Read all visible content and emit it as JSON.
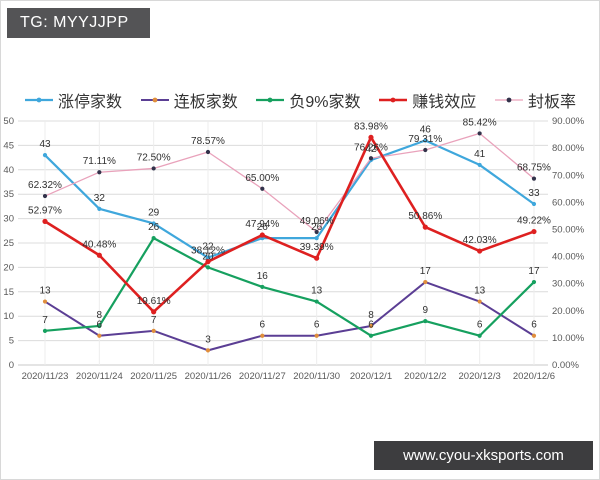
{
  "header": {
    "tg_label": "TG: MYYJJPP"
  },
  "footer": {
    "website": "www.cyou-xksports.com"
  },
  "colors": {
    "badge_top_bg": "#545456",
    "badge_bottom_bg": "#3d3d3f",
    "gridline": "#dcdcdc",
    "axis_text": "#595959",
    "data_label_text": "#303030"
  },
  "chart_data": {
    "type": "line",
    "title": "",
    "legend_position": "top",
    "grid": true,
    "categories": [
      "2020/11/23",
      "2020/11/24",
      "2020/11/25",
      "2020/11/26",
      "2020/11/27",
      "2020/11/30",
      "2020/12/1",
      "2020/12/2",
      "2020/12/3",
      "2020/12/6"
    ],
    "series": [
      {
        "name": "涨停家数",
        "axis": "left",
        "color": "#3fa7dc",
        "marker": "#3fa7dc",
        "line_width": 2.2,
        "values": [
          43,
          32,
          29,
          22,
          26,
          26,
          42,
          46,
          41,
          33
        ],
        "labels": [
          "43",
          "32",
          "29",
          "22",
          "26",
          "26",
          "42",
          "46",
          "41",
          "33"
        ]
      },
      {
        "name": "连板家数",
        "axis": "left",
        "color": "#5b3e94",
        "marker": "#e08e3c",
        "line_width": 2,
        "values": [
          13,
          6,
          7,
          3,
          6,
          6,
          8,
          17,
          13,
          6
        ],
        "labels": [
          "13",
          "6",
          "7",
          "3",
          "6",
          "6",
          "8",
          "17",
          "13",
          "6"
        ]
      },
      {
        "name": "负9%家数",
        "axis": "left",
        "color": "#16a05f",
        "marker": "#16a05f",
        "line_width": 2.2,
        "values": [
          7,
          8,
          26,
          20,
          16,
          13,
          6,
          9,
          6,
          17
        ],
        "labels": [
          "7",
          "8",
          "26",
          "20",
          "16",
          "13",
          "6",
          "9",
          "6",
          "17"
        ]
      },
      {
        "name": "赚钱效应",
        "axis": "right",
        "color": "#de2020",
        "marker": "#de2020",
        "line_width": 2.6,
        "values": [
          52.97,
          40.48,
          19.61,
          38.12,
          47.94,
          39.39,
          83.98,
          50.86,
          42.03,
          49.22
        ],
        "labels": [
          "52.97%",
          "40.48%",
          "19.61%",
          "38.12%",
          "47.94%",
          "39.39%",
          "83.98%",
          "50.86%",
          "42.03%",
          "49.22%"
        ]
      },
      {
        "name": "封板率",
        "axis": "right",
        "color": "#e9a2bb",
        "marker": "#32324a",
        "line_width": 1.3,
        "values": [
          62.32,
          71.11,
          72.5,
          78.57,
          65.0,
          49.06,
          76.26,
          79.31,
          85.42,
          68.75
        ],
        "labels": [
          "62.32%",
          "71.11%",
          "72.50%",
          "78.57%",
          "65.00%",
          "49.06%",
          "76.26%",
          "79.31%",
          "85.42%",
          "68.75%"
        ]
      }
    ],
    "left_axis": {
      "min": 0,
      "max": 50,
      "step": 5,
      "tick_labels": [
        "50",
        "45",
        "40",
        "35",
        "30",
        "25",
        "20",
        "15",
        "10",
        "5",
        "0"
      ]
    },
    "right_axis": {
      "min": 0,
      "max": 90,
      "step": 10,
      "tick_labels": [
        "90.00%",
        "80.00%",
        "70.00%",
        "60.00%",
        "50.00%",
        "40.00%",
        "30.00%",
        "20.00%",
        "10.00%",
        "0.00%"
      ]
    }
  }
}
